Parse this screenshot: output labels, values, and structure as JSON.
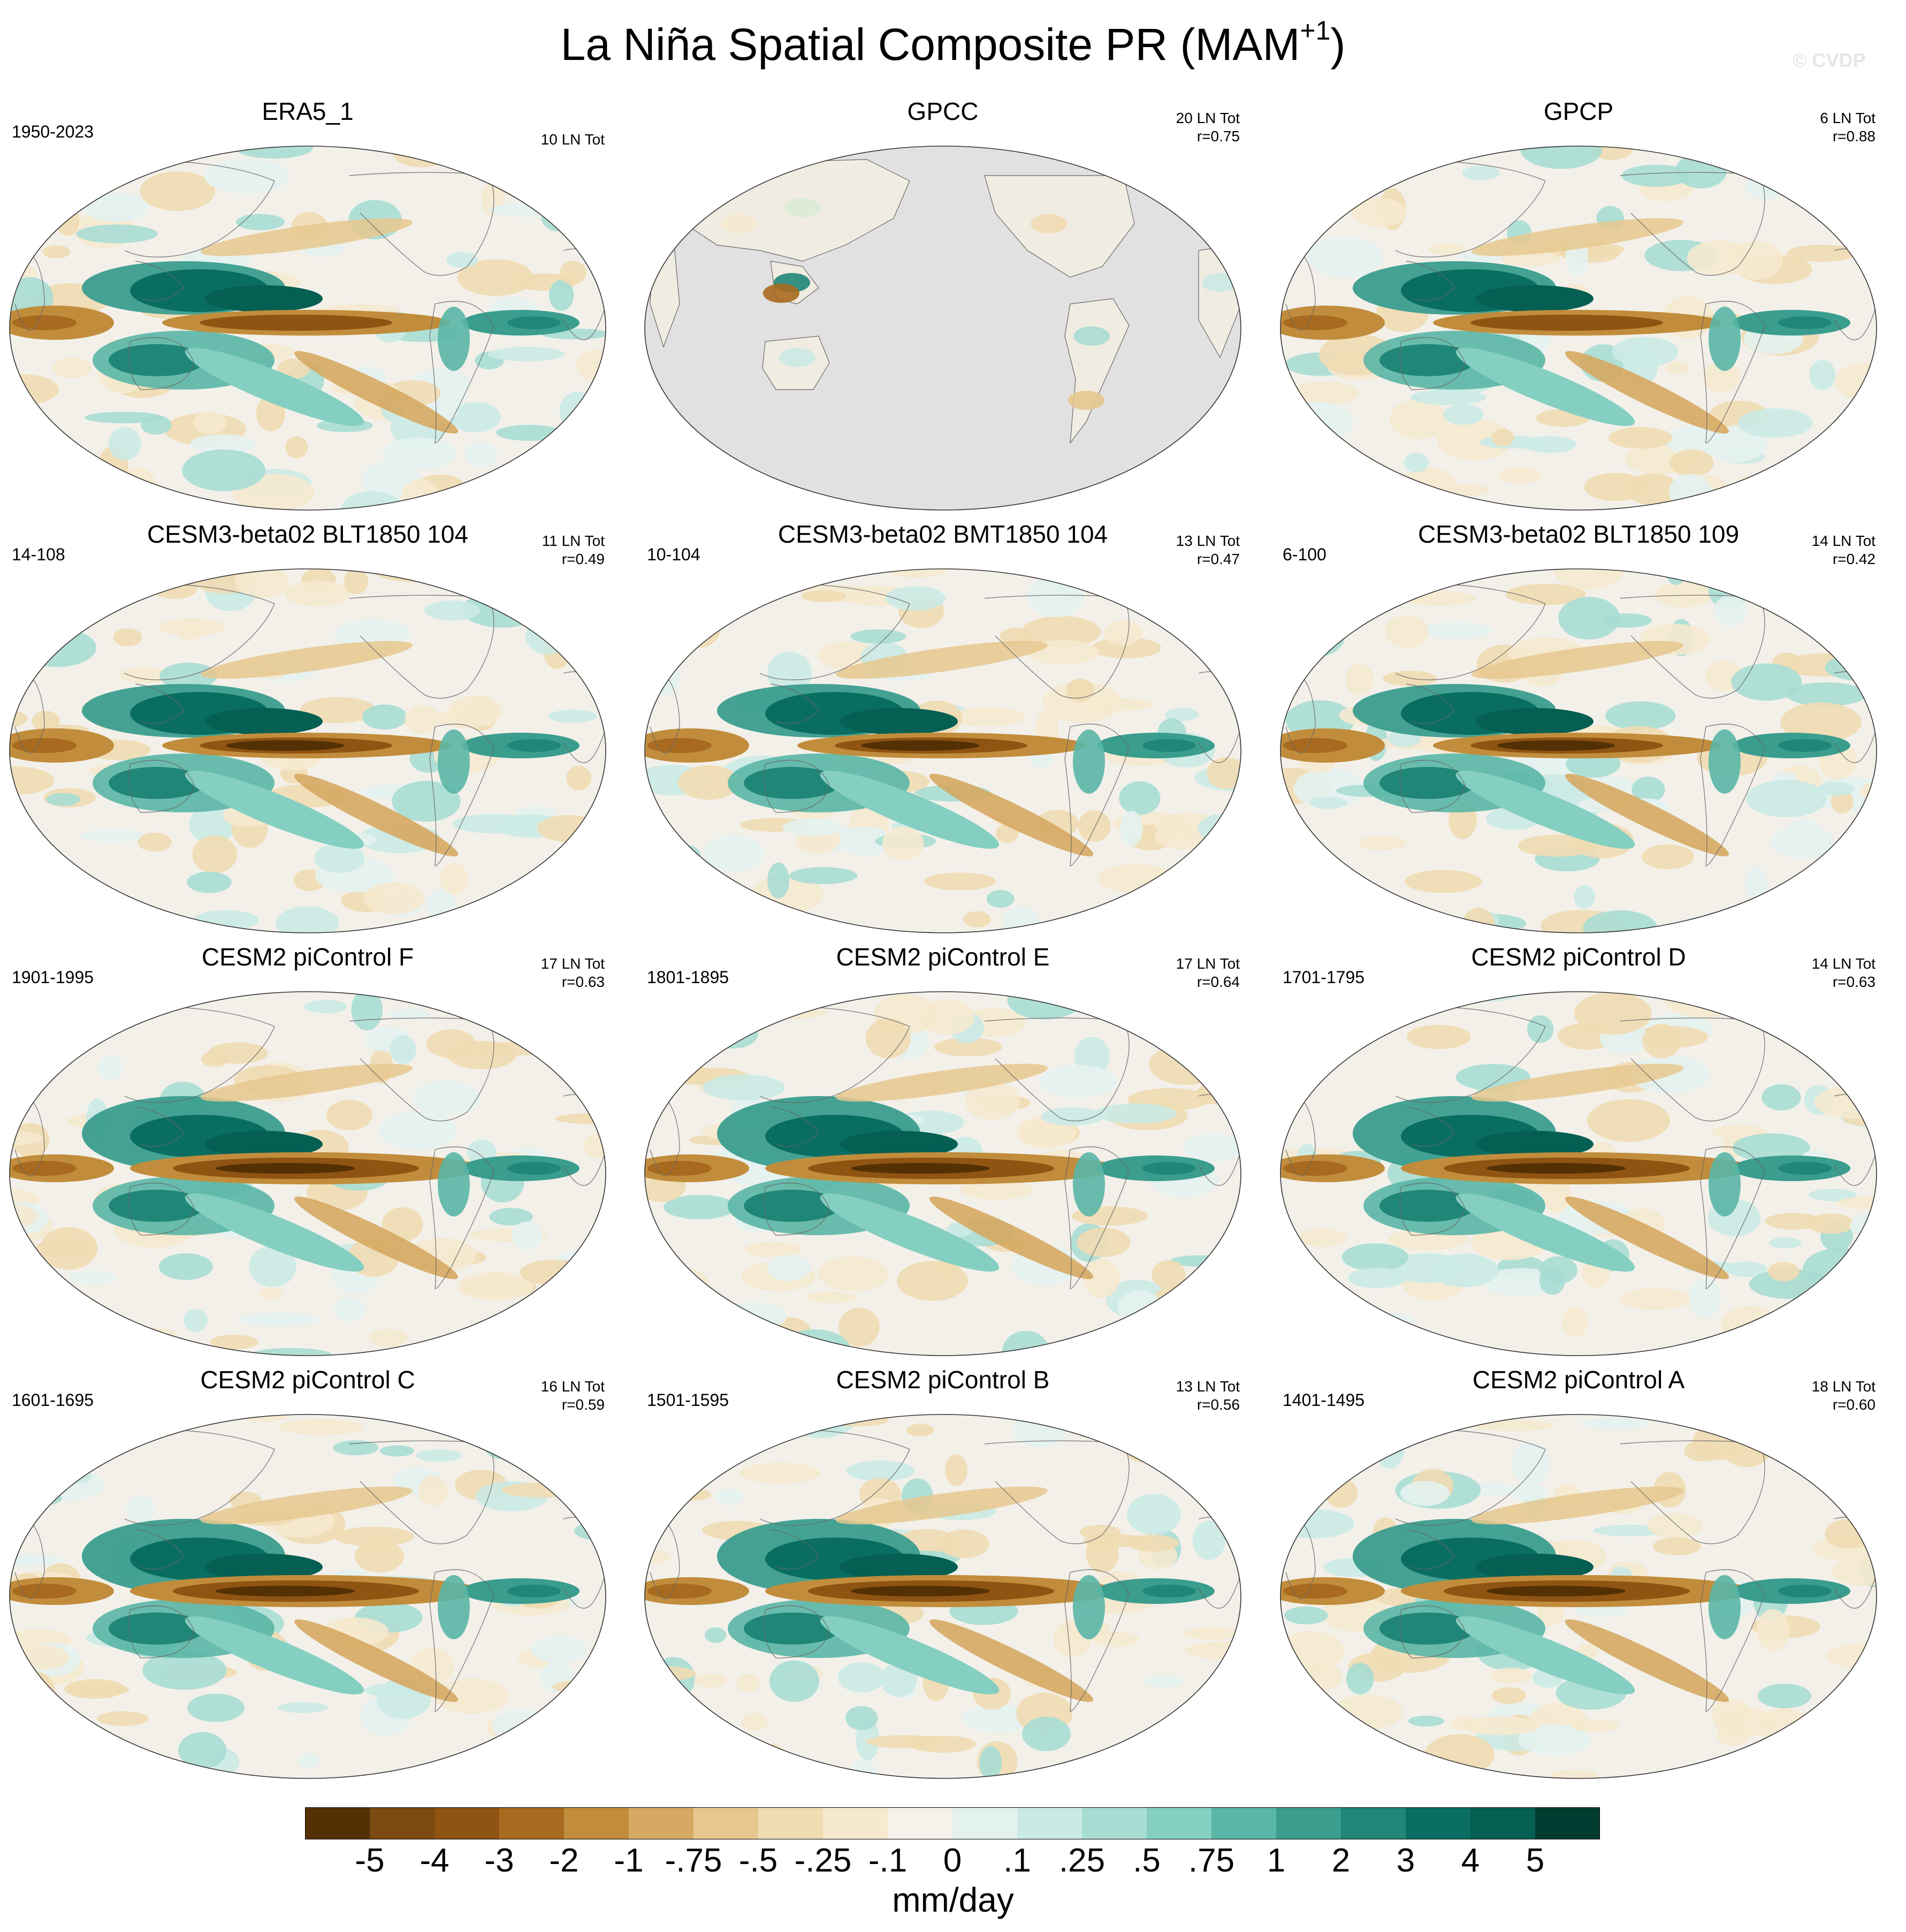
{
  "title": {
    "main": "La Niña Spatial Composite PR (MAM",
    "superscript": "+1",
    "close": ")"
  },
  "watermark": "© CVDP",
  "panels": [
    {
      "title": "ERA5_1",
      "years": "1950-2023",
      "count": "10 LN Tot",
      "corr": "",
      "variant": "obs",
      "seed": 3
    },
    {
      "title": "GPCC",
      "years": "",
      "count": "20 LN Tot",
      "corr": "r=0.75",
      "variant": "land",
      "seed": 7
    },
    {
      "title": "GPCP",
      "years": "",
      "count": "6 LN Tot",
      "corr": "r=0.88",
      "variant": "obs2",
      "seed": 11
    },
    {
      "title": "CESM3-beta02 BLT1850 104",
      "years": "14-108",
      "count": "11 LN Tot",
      "corr": "r=0.49",
      "variant": "model",
      "seed": 17
    },
    {
      "title": "CESM3-beta02 BMT1850 104",
      "years": "10-104",
      "count": "13 LN Tot",
      "corr": "r=0.47",
      "variant": "model",
      "seed": 23
    },
    {
      "title": "CESM3-beta02 BLT1850 109",
      "years": "6-100",
      "count": "14 LN Tot",
      "corr": "r=0.42",
      "variant": "model",
      "seed": 29
    },
    {
      "title": "CESM2 piControl F",
      "years": "1901-1995",
      "count": "17 LN Tot",
      "corr": "r=0.63",
      "variant": "strong",
      "seed": 31
    },
    {
      "title": "CESM2 piControl E",
      "years": "1801-1895",
      "count": "17 LN Tot",
      "corr": "r=0.64",
      "variant": "strong",
      "seed": 37
    },
    {
      "title": "CESM2 piControl D",
      "years": "1701-1795",
      "count": "14 LN Tot",
      "corr": "r=0.63",
      "variant": "strong",
      "seed": 41
    },
    {
      "title": "CESM2 piControl C",
      "years": "1601-1695",
      "count": "16 LN Tot",
      "corr": "r=0.59",
      "variant": "strong",
      "seed": 43
    },
    {
      "title": "CESM2 piControl B",
      "years": "1501-1595",
      "count": "13 LN Tot",
      "corr": "r=0.56",
      "variant": "strong",
      "seed": 47
    },
    {
      "title": "CESM2 piControl A",
      "years": "1401-1495",
      "count": "18 LN Tot",
      "corr": "r=0.60",
      "variant": "strong",
      "seed": 53
    }
  ],
  "colorbar": {
    "unit": "mm/day",
    "labels": [
      "-5",
      "-4",
      "-3",
      "-2",
      "-1",
      "-.75",
      "-.5",
      "-.25",
      "-.1",
      "0",
      ".1",
      ".25",
      ".5",
      ".75",
      "1",
      "2",
      "3",
      "4",
      "5"
    ],
    "colors": [
      "#543005",
      "#7b4a10",
      "#8f5412",
      "#a86a1f",
      "#c18d3c",
      "#d6a962",
      "#e6c88e",
      "#f0dcb2",
      "#f5e9cf",
      "#f5f2eb",
      "#e4f2ef",
      "#cbeae5",
      "#a8ddd4",
      "#84cfc1",
      "#5ab6a6",
      "#3b9d8e",
      "#208678",
      "#096e61",
      "#055f52",
      "#003c30"
    ]
  },
  "map_colors": {
    "land_mask": "#e1e1e1",
    "coast": "#666666"
  }
}
